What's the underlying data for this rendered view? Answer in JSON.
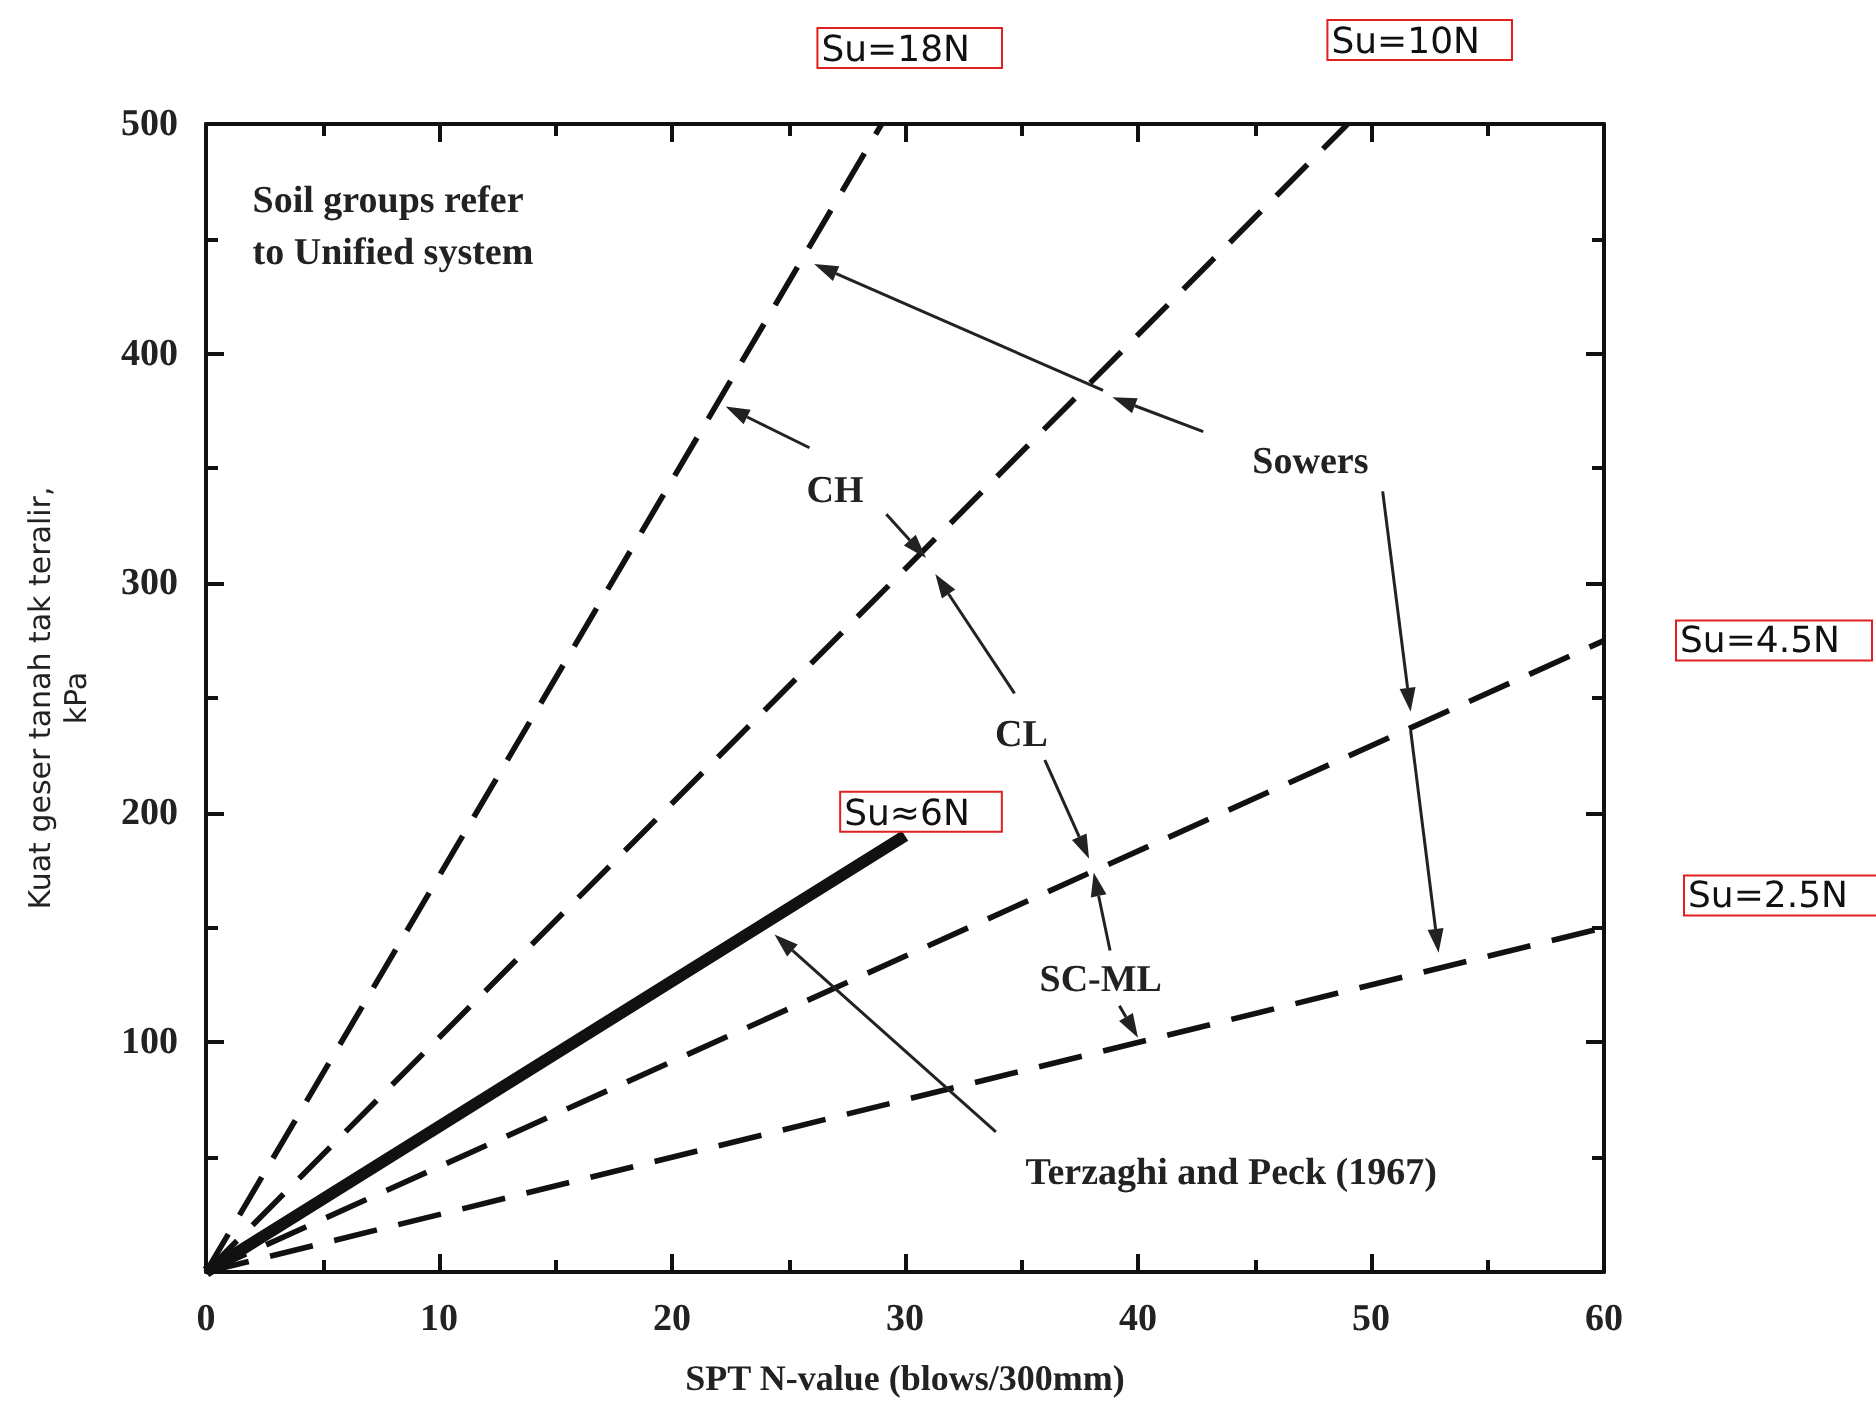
{
  "chart_data": {
    "type": "line",
    "xlabel": "SPT N-value (blows/300mm)",
    "ylabel": "Kuat geser tanah tak teralir,\nkPa",
    "xlim": [
      0,
      60
    ],
    "xticks": [
      0,
      10,
      20,
      30,
      40,
      50,
      60
    ],
    "ylim": [
      0,
      500
    ],
    "yticks": [
      100,
      200,
      300,
      400,
      500
    ],
    "grid": false,
    "legend": false,
    "marker": "none",
    "series": [
      {
        "name": "Su=18N",
        "color": "#111111",
        "line_style": "dashed",
        "x": [
          0,
          29
        ],
        "values": [
          0,
          500
        ]
      },
      {
        "name": "Su=10N",
        "color": "#111111",
        "line_style": "dashed",
        "x": [
          0,
          49
        ],
        "values": [
          0,
          500
        ]
      },
      {
        "name": "Su=4.5N",
        "color": "#111111",
        "line_style": "dashed",
        "x": [
          0,
          60
        ],
        "values": [
          0,
          275
        ]
      },
      {
        "name": "Su=2.5N",
        "color": "#111111",
        "line_style": "dashed",
        "x": [
          0,
          60
        ],
        "values": [
          0,
          150
        ]
      },
      {
        "name": "Su≈6N",
        "color": "#111111",
        "line_style": "solid",
        "x": [
          0,
          30
        ],
        "values": [
          0,
          190
        ]
      }
    ],
    "annotations": [
      "Soil groups refer\nto Unified system",
      "CH",
      "CL",
      "SC-ML",
      "Sowers",
      "Terzaghi and Peck (1967)"
    ]
  }
}
